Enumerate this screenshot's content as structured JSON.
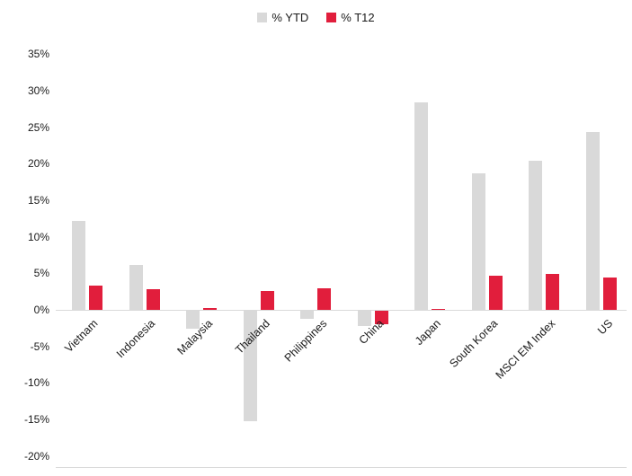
{
  "legend": {
    "items": [
      {
        "label": "% YTD",
        "color": "#d9d9d9"
      },
      {
        "label": "% T12",
        "color": "#e11e3c"
      }
    ]
  },
  "chart_data": {
    "type": "bar",
    "title": "",
    "xlabel": "",
    "ylabel": "",
    "categories": [
      "Vietnam",
      "Indonesia",
      "Malaysia",
      "Thailand",
      "Philippines",
      "China",
      "Japan",
      "South Korea",
      "MSCI EM Index",
      "US"
    ],
    "series": [
      {
        "name": "% YTD",
        "color": "#d9d9d9",
        "values": [
          12.2,
          6.1,
          -2.5,
          -15.1,
          -1.1,
          -2.1,
          28.4,
          18.7,
          20.4,
          24.3
        ]
      },
      {
        "name": "% T12",
        "color": "#e11e3c",
        "values": [
          3.3,
          2.8,
          0.3,
          2.6,
          2.9,
          -1.8,
          0.1,
          4.7,
          4.9,
          4.4
        ]
      }
    ],
    "ylim": [
      -20,
      35
    ],
    "y_tick_step": 5,
    "y_tick_labels": [
      "35%",
      "30%",
      "25%",
      "20%",
      "15%",
      "10%",
      "5%",
      "0%",
      "-5%",
      "-10%",
      "-15%",
      "-20%"
    ],
    "grid": false,
    "legend_position": "top",
    "axis_line_color": "#d9d9d9",
    "text_color": "#1a1a1a"
  }
}
